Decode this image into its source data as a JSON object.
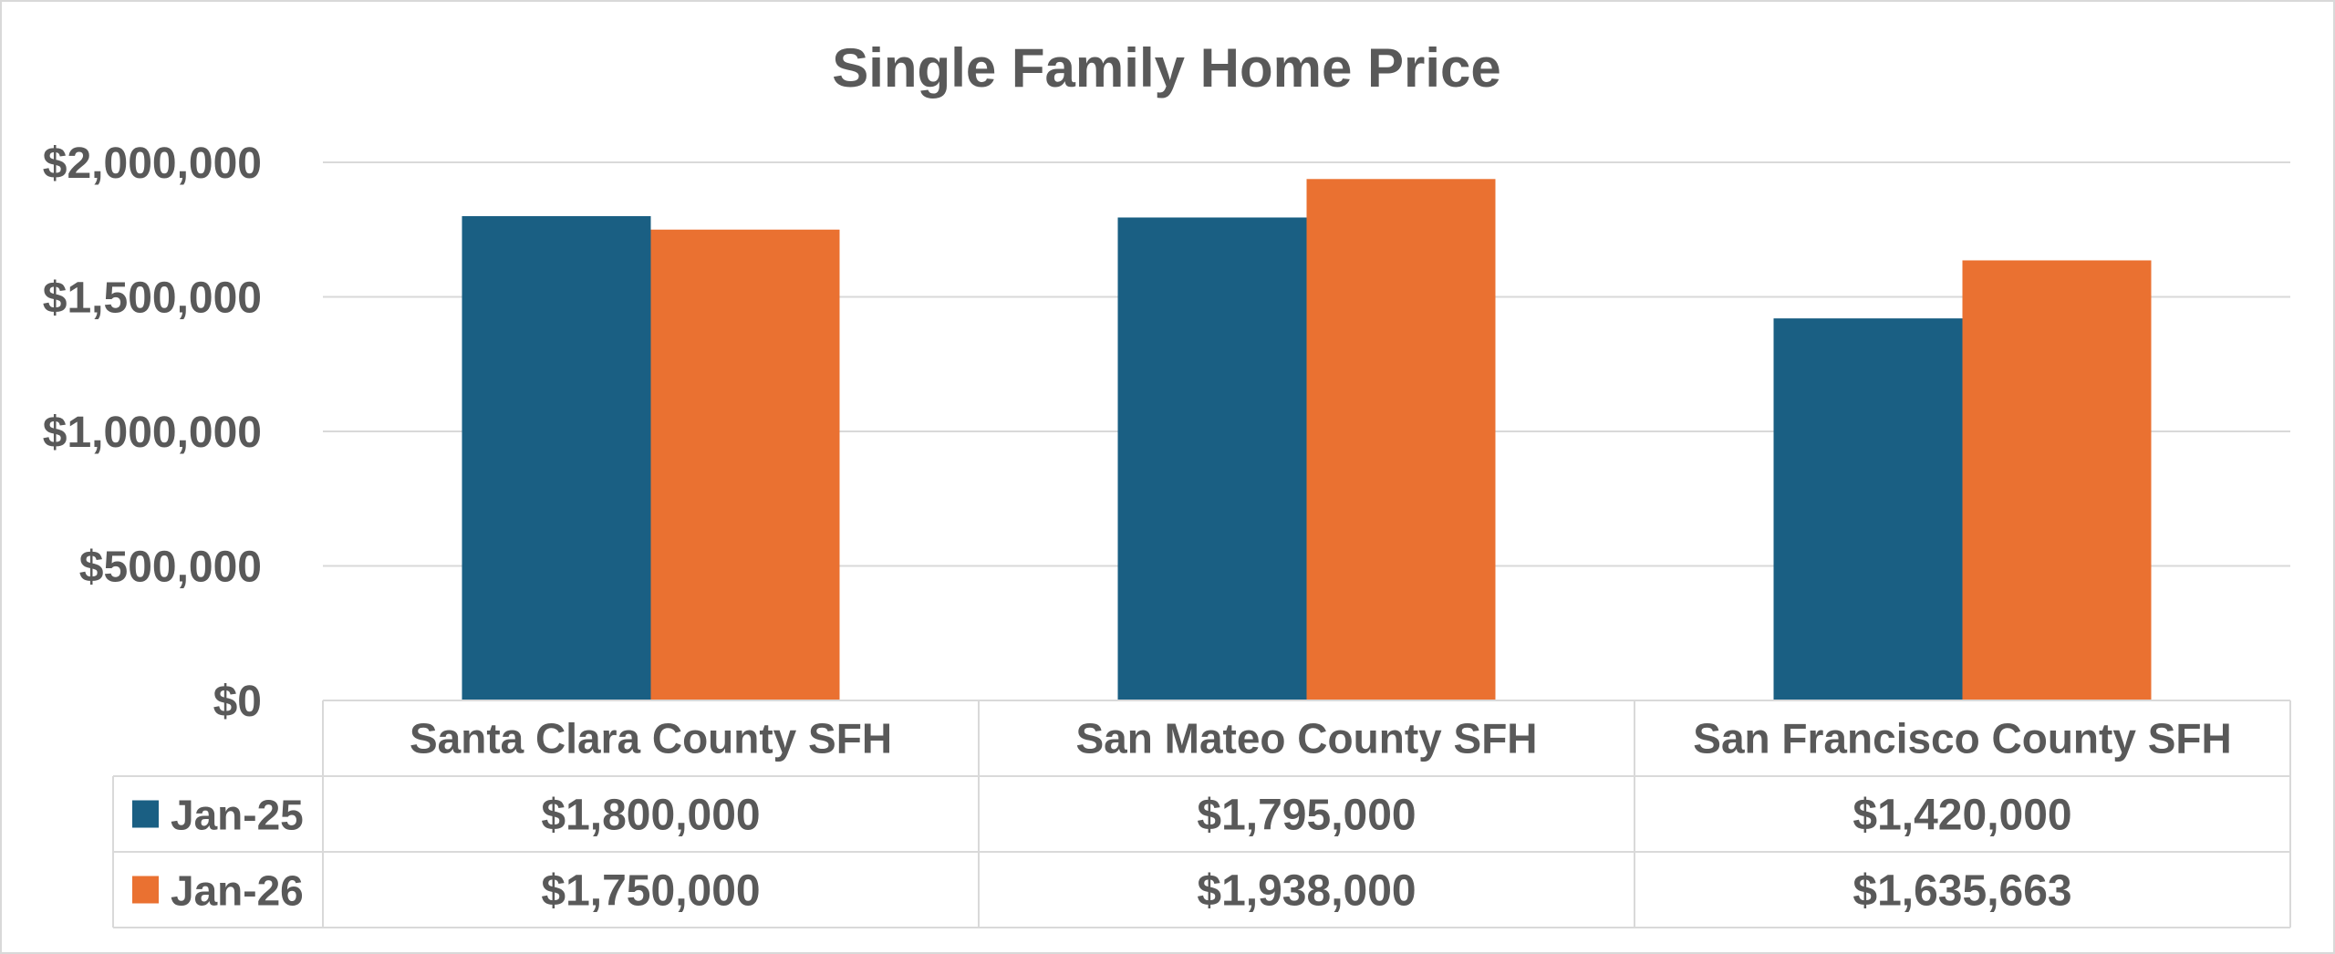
{
  "chart_data": {
    "type": "bar",
    "title": "Single Family Home Price",
    "categories": [
      "Santa Clara County SFH",
      "San Mateo County SFH",
      "San Francisco County SFH"
    ],
    "series": [
      {
        "name": "Jan-25",
        "values": [
          1800000,
          1795000,
          1420000
        ],
        "labels": [
          "$1,800,000",
          "$1,795,000",
          "$1,420,000"
        ],
        "color": "#1a5f83"
      },
      {
        "name": "Jan-26",
        "values": [
          1750000,
          1938000,
          1635663
        ],
        "labels": [
          "$1,750,000",
          "$1,938,000",
          "$1,635,663"
        ],
        "color": "#ea7131"
      }
    ],
    "ylim": [
      0,
      2000000
    ],
    "yticks": [
      0,
      500000,
      1000000,
      1500000,
      2000000
    ],
    "ytick_labels": [
      "$0",
      "$500,000",
      "$1,000,000",
      "$1,500,000",
      "$2,000,000"
    ],
    "grid": true,
    "legend": "data-table",
    "xlabel": "",
    "ylabel": ""
  }
}
